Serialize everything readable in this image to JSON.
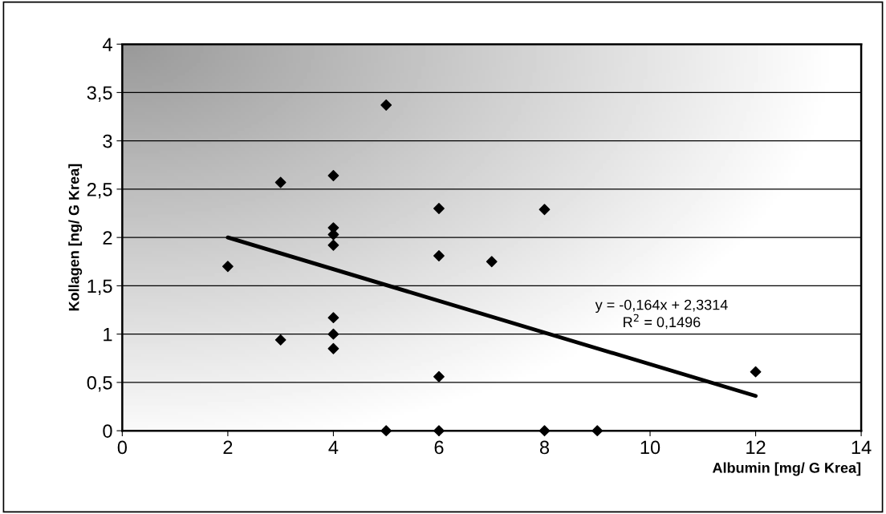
{
  "chart_data": {
    "type": "scatter",
    "xlabel": "Albumin [mg/ G Krea]",
    "ylabel": "Kollagen [ng/ G Krea]",
    "xlim": [
      0,
      14
    ],
    "xticks": [
      0,
      2,
      4,
      6,
      8,
      10,
      12,
      14
    ],
    "ylim": [
      0,
      4
    ],
    "yticks": [
      0,
      {
        "value": 0.5,
        "label": "0,5"
      },
      1,
      {
        "value": 1.5,
        "label": "1,5"
      },
      2,
      {
        "value": 2.5,
        "label": "2,5"
      },
      3,
      {
        "value": 3.5,
        "label": "3,5"
      },
      4
    ],
    "grid": "y",
    "series": [
      {
        "color": "#000000",
        "marker": "diamond",
        "x": [
          2,
          3,
          3,
          4,
          4,
          4,
          4,
          4,
          4,
          4,
          5,
          5,
          6,
          6,
          6,
          6,
          7,
          8,
          8,
          9,
          12
        ],
        "values": [
          1.7,
          2.57,
          0.94,
          2.64,
          2.1,
          2.03,
          1.92,
          1.17,
          1.0,
          0.85,
          3.37,
          0,
          2.3,
          1.81,
          0.56,
          0,
          1.75,
          2.29,
          0,
          0,
          0.61
        ]
      },
      {
        "type": "line",
        "color": "#000000",
        "line_style": "solid",
        "x": [
          2,
          12
        ],
        "values": [
          2.0,
          0.36
        ]
      }
    ],
    "annotations": [
      "y = -0,164x + 2,3314\nR$^{2}$ = 0,1496"
    ]
  }
}
